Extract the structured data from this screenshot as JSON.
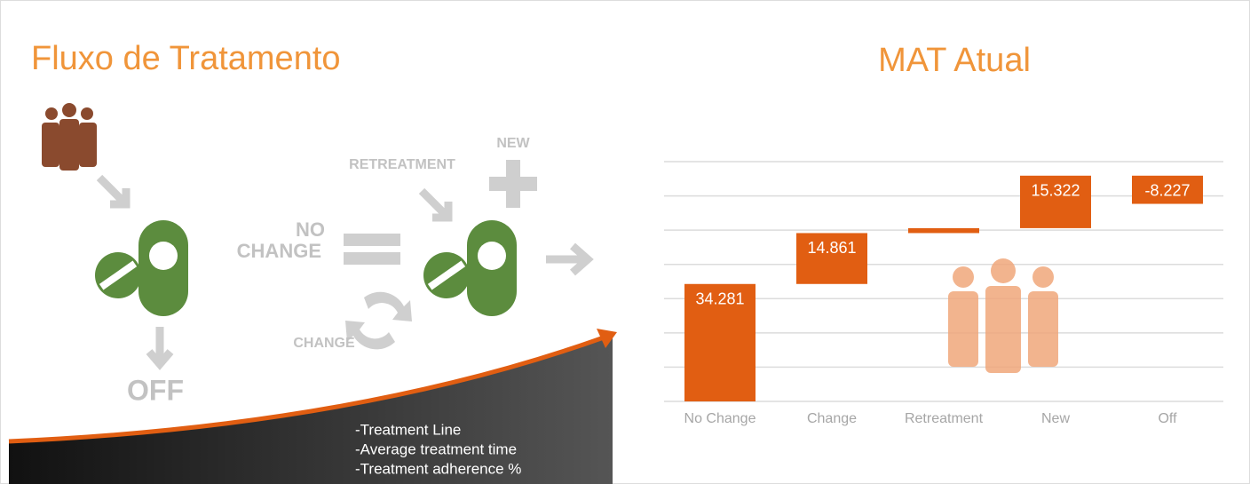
{
  "left_title": "Fluxo de Tratamento",
  "flow": {
    "retreatment": "RETREATMENT",
    "new": "NEW",
    "no_change": [
      "NO",
      "CHANGE"
    ],
    "change": "CHANGE",
    "off": "OFF"
  },
  "notes": [
    "-Treatment Line",
    "-Average treatment time",
    "-Treatment adherence %"
  ],
  "chart_data": {
    "type": "waterfall",
    "title": "MAT Atual",
    "categories": [
      "No Change",
      "Change",
      "Retreatment",
      "New",
      "Off"
    ],
    "values": [
      34.281,
      14.861,
      1.437,
      15.322,
      -8.227
    ],
    "color": "#e15e12",
    "ylim": [
      0,
      70
    ],
    "yticks": [
      0,
      10,
      20,
      30,
      40,
      50,
      60,
      70
    ],
    "grid": true
  }
}
